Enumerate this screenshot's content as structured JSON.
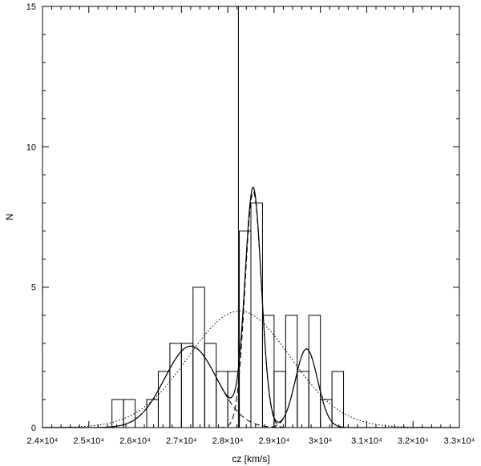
{
  "chart_data": {
    "type": "bar",
    "title": "",
    "xlabel": "cz [km/s]",
    "ylabel": "N",
    "xlim": [
      24000,
      33000
    ],
    "ylim": [
      0,
      15
    ],
    "x_ticks": [
      24000,
      25000,
      26000,
      27000,
      28000,
      29000,
      30000,
      31000,
      32000,
      33000
    ],
    "x_tick_labels": [
      "2.4×10⁴",
      "2.5×10⁴",
      "2.6×10⁴",
      "2.7×10⁴",
      "2.8×10⁴",
      "2.9×10⁴",
      "3×10⁴",
      "3.1×10⁴",
      "3.2×10⁴",
      "3.3×10⁴"
    ],
    "y_ticks": [
      0,
      5,
      10,
      15
    ],
    "y_tick_labels": [
      "0",
      "5",
      "10",
      "15"
    ],
    "grid": false,
    "histogram": {
      "bin_width": 250,
      "bins": [
        {
          "start": 25500,
          "count": 1
        },
        {
          "start": 25750,
          "count": 1
        },
        {
          "start": 26000,
          "count": 0
        },
        {
          "start": 26250,
          "count": 1
        },
        {
          "start": 26500,
          "count": 2
        },
        {
          "start": 26750,
          "count": 3
        },
        {
          "start": 27000,
          "count": 3
        },
        {
          "start": 27250,
          "count": 5
        },
        {
          "start": 27500,
          "count": 3
        },
        {
          "start": 27750,
          "count": 2
        },
        {
          "start": 28000,
          "count": 2
        },
        {
          "start": 28250,
          "count": 7
        },
        {
          "start": 28500,
          "count": 8
        },
        {
          "start": 28750,
          "count": 4
        },
        {
          "start": 29000,
          "count": 2
        },
        {
          "start": 29250,
          "count": 4
        },
        {
          "start": 29500,
          "count": 2
        },
        {
          "start": 29750,
          "count": 4
        },
        {
          "start": 30000,
          "count": 1
        },
        {
          "start": 30250,
          "count": 2
        }
      ]
    },
    "vertical_line_x": 28230,
    "gaussian_components": [
      {
        "mean": 27200,
        "sigma": 560,
        "amplitude": 2.9
      },
      {
        "mean": 28550,
        "sigma": 175,
        "amplitude": 8.4
      },
      {
        "mean": 29700,
        "sigma": 240,
        "amplitude": 2.8
      }
    ],
    "single_gaussian": {
      "mean": 28250,
      "sigma": 1100,
      "amplitude": 4.15
    }
  }
}
